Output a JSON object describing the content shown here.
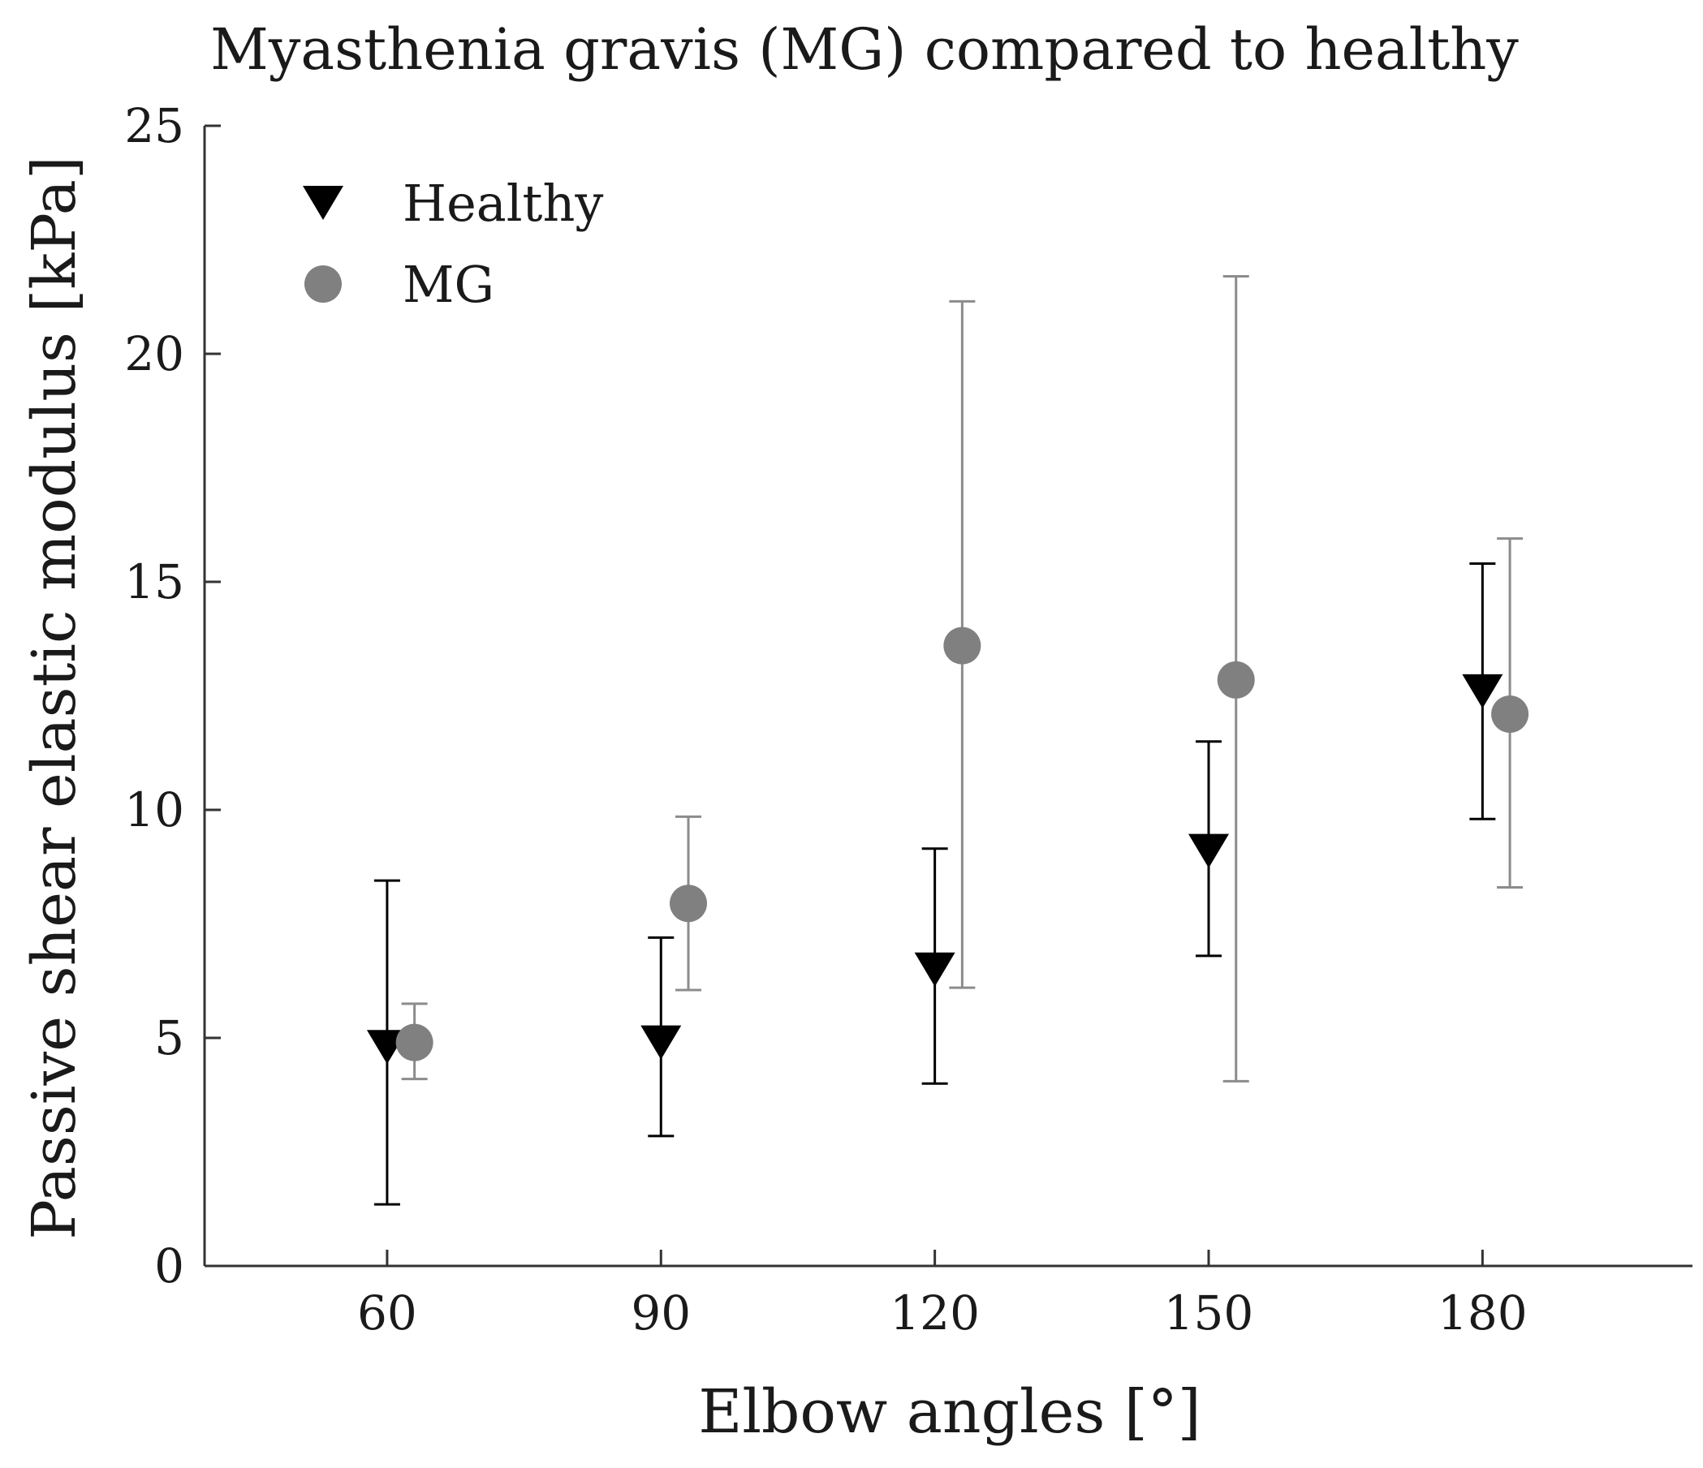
{
  "chart_data": {
    "type": "scatter",
    "title": "Myasthenia gravis (MG) compared to healthy",
    "xlabel": "Elbow angles [°]",
    "ylabel": "Passive shear elastic modulus [kPa]",
    "xlim": [
      40,
      203
    ],
    "ylim": [
      0,
      25
    ],
    "xticks": [
      60,
      90,
      120,
      150,
      180
    ],
    "yticks": [
      0,
      5,
      10,
      15,
      20,
      25
    ],
    "grid": false,
    "legend_position": "top-left",
    "series": [
      {
        "name": "Healthy",
        "marker": "triangle-down",
        "color": "#000000",
        "errorbar_color": "#000000",
        "x": [
          60,
          90,
          120,
          150,
          180
        ],
        "x_offset": 0,
        "y": [
          4.8,
          4.9,
          6.5,
          9.1,
          12.6
        ],
        "y_lower": [
          1.35,
          2.85,
          4.0,
          6.8,
          9.8
        ],
        "y_upper": [
          8.45,
          7.2,
          9.15,
          11.5,
          15.4
        ]
      },
      {
        "name": "MG",
        "marker": "circle",
        "color": "#808080",
        "errorbar_color": "#8c8c8c",
        "x": [
          60,
          90,
          120,
          150,
          180
        ],
        "x_offset": 3,
        "y": [
          4.9,
          7.95,
          13.6,
          12.85,
          12.1
        ],
        "y_lower": [
          4.1,
          6.05,
          6.1,
          4.05,
          8.3
        ],
        "y_upper": [
          5.75,
          9.85,
          21.15,
          21.7,
          15.95
        ]
      }
    ]
  }
}
